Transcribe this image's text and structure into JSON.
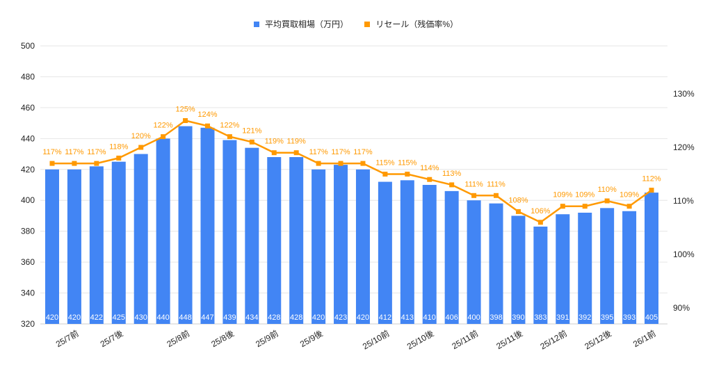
{
  "chart_data": {
    "type": "bar+line",
    "legend_position": "top",
    "grid": true,
    "categories": [
      "25/7前",
      "",
      "25/7後",
      "",
      "",
      "25/8前",
      "",
      "25/8後",
      "",
      "25/9前",
      "",
      "25/9後",
      "",
      "",
      "25/10前",
      "",
      "25/10後",
      "",
      "25/11前",
      "",
      "25/11後",
      "",
      "25/12前",
      "",
      "25/12後",
      "",
      "26/1前",
      ""
    ],
    "series": [
      {
        "name": "平均買取相場（万円）",
        "type": "bar",
        "axis": "left",
        "color": "#4285f4",
        "values": [
          420,
          420,
          422,
          425,
          430,
          440,
          448,
          447,
          439,
          434,
          428,
          428,
          420,
          423,
          420,
          412,
          413,
          410,
          406,
          400,
          398,
          390,
          383,
          391,
          392,
          395,
          393,
          405
        ]
      },
      {
        "name": "リセール（残価率%）",
        "type": "line",
        "axis": "right",
        "color": "#ff9900",
        "values": [
          117,
          117,
          117,
          118,
          120,
          122,
          125,
          124,
          122,
          121,
          119,
          119,
          117,
          117,
          117,
          115,
          115,
          114,
          113,
          111,
          111,
          108,
          106,
          109,
          109,
          110,
          109,
          112
        ]
      }
    ],
    "y_left": {
      "range": [
        320,
        500
      ],
      "ticks": [
        320,
        340,
        360,
        380,
        400,
        420,
        440,
        460,
        480,
        500
      ]
    },
    "y_right": {
      "ticks": [
        "90%",
        "100%",
        "110%",
        "120%",
        "130%"
      ],
      "tick_values": [
        90,
        100,
        110,
        120,
        130
      ]
    }
  }
}
